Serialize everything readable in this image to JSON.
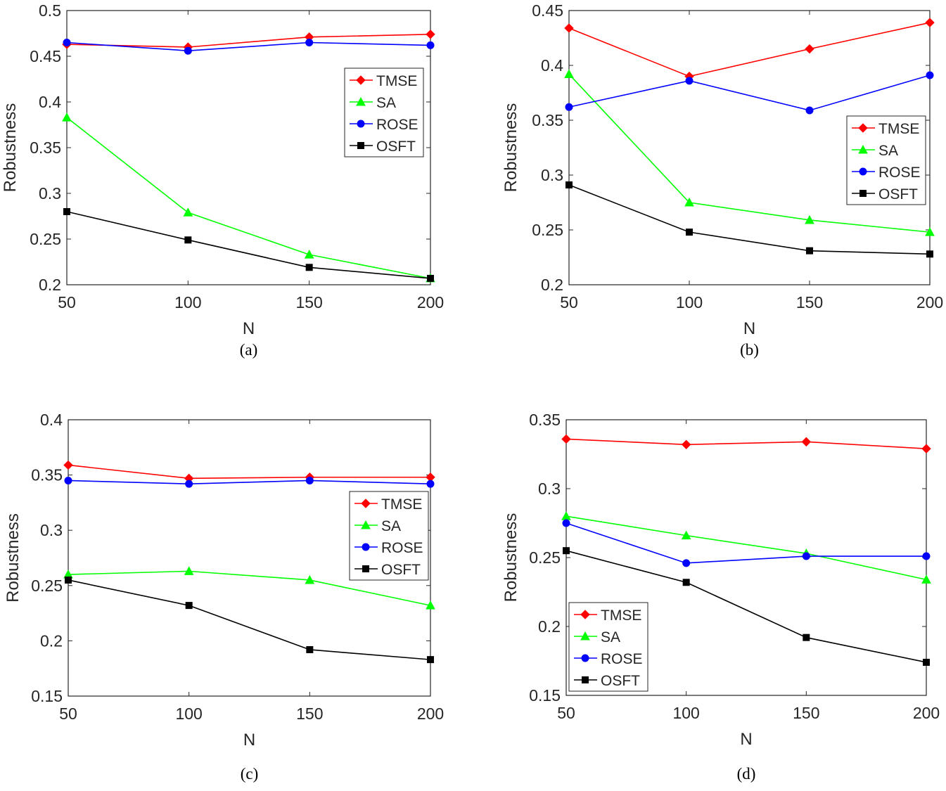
{
  "colors": {
    "TMSE": "#ff0000",
    "SA": "#00ff00",
    "ROSE": "#0000ff",
    "OSFT": "#000000",
    "axis": "#262626"
  },
  "chart_data": [
    {
      "type": "line",
      "caption": "(a)",
      "xlabel": "N",
      "ylabel": "Robustness",
      "x": [
        50,
        100,
        150,
        200
      ],
      "xticks": [
        "50",
        "100",
        "150",
        "200"
      ],
      "yticks": [
        "0.2",
        "0.25",
        "0.3",
        "0.35",
        "0.4",
        "0.45",
        "0.5"
      ],
      "xlim": [
        50,
        200
      ],
      "ylim": [
        0.2,
        0.5
      ],
      "legend_position": "center-right",
      "series": [
        {
          "name": "TMSE",
          "marker": "diamond",
          "values": [
            0.463,
            0.46,
            0.471,
            0.474
          ]
        },
        {
          "name": "SA",
          "marker": "triangle",
          "values": [
            0.383,
            0.279,
            0.233,
            0.207
          ]
        },
        {
          "name": "ROSE",
          "marker": "circle",
          "values": [
            0.465,
            0.456,
            0.465,
            0.462
          ]
        },
        {
          "name": "OSFT",
          "marker": "square",
          "values": [
            0.28,
            0.249,
            0.219,
            0.207
          ]
        }
      ]
    },
    {
      "type": "line",
      "caption": "(b)",
      "xlabel": "N",
      "ylabel": "Robustness",
      "x": [
        50,
        100,
        150,
        200
      ],
      "xticks": [
        "50",
        "100",
        "150",
        "200"
      ],
      "yticks": [
        "0.2",
        "0.25",
        "0.3",
        "0.35",
        "0.4",
        "0.45"
      ],
      "xlim": [
        50,
        200
      ],
      "ylim": [
        0.2,
        0.45
      ],
      "legend_position": "center-right",
      "series": [
        {
          "name": "TMSE",
          "marker": "diamond",
          "values": [
            0.434,
            0.39,
            0.415,
            0.439
          ]
        },
        {
          "name": "SA",
          "marker": "triangle",
          "values": [
            0.392,
            0.275,
            0.259,
            0.248
          ]
        },
        {
          "name": "ROSE",
          "marker": "circle",
          "values": [
            0.362,
            0.386,
            0.359,
            0.391
          ]
        },
        {
          "name": "OSFT",
          "marker": "square",
          "values": [
            0.291,
            0.248,
            0.231,
            0.228
          ]
        }
      ]
    },
    {
      "type": "line",
      "caption": "(c)",
      "xlabel": "N",
      "ylabel": "Robustness",
      "x": [
        50,
        100,
        150,
        200
      ],
      "xticks": [
        "50",
        "100",
        "150",
        "200"
      ],
      "yticks": [
        "0.15",
        "0.2",
        "0.25",
        "0.3",
        "0.35",
        "0.4"
      ],
      "xlim": [
        50,
        200
      ],
      "ylim": [
        0.15,
        0.4
      ],
      "legend_position": "center-right",
      "series": [
        {
          "name": "TMSE",
          "marker": "diamond",
          "values": [
            0.359,
            0.347,
            0.348,
            0.348
          ]
        },
        {
          "name": "SA",
          "marker": "triangle",
          "values": [
            0.26,
            0.263,
            0.255,
            0.232
          ]
        },
        {
          "name": "ROSE",
          "marker": "circle",
          "values": [
            0.345,
            0.342,
            0.345,
            0.342
          ]
        },
        {
          "name": "OSFT",
          "marker": "square",
          "values": [
            0.255,
            0.232,
            0.192,
            0.183
          ]
        }
      ]
    },
    {
      "type": "line",
      "caption": "(d)",
      "xlabel": "N",
      "ylabel": "Robustness",
      "x": [
        50,
        100,
        150,
        200
      ],
      "xticks": [
        "50",
        "100",
        "150",
        "200"
      ],
      "yticks": [
        "0.15",
        "0.2",
        "0.25",
        "0.3",
        "0.35"
      ],
      "xlim": [
        50,
        200
      ],
      "ylim": [
        0.15,
        0.35
      ],
      "legend_position": "bottom-left",
      "series": [
        {
          "name": "TMSE",
          "marker": "diamond",
          "values": [
            0.336,
            0.332,
            0.334,
            0.329
          ]
        },
        {
          "name": "SA",
          "marker": "triangle",
          "values": [
            0.28,
            0.266,
            0.253,
            0.234
          ]
        },
        {
          "name": "ROSE",
          "marker": "circle",
          "values": [
            0.275,
            0.246,
            0.251,
            0.251
          ]
        },
        {
          "name": "OSFT",
          "marker": "square",
          "values": [
            0.255,
            0.232,
            0.192,
            0.174
          ]
        }
      ]
    }
  ]
}
